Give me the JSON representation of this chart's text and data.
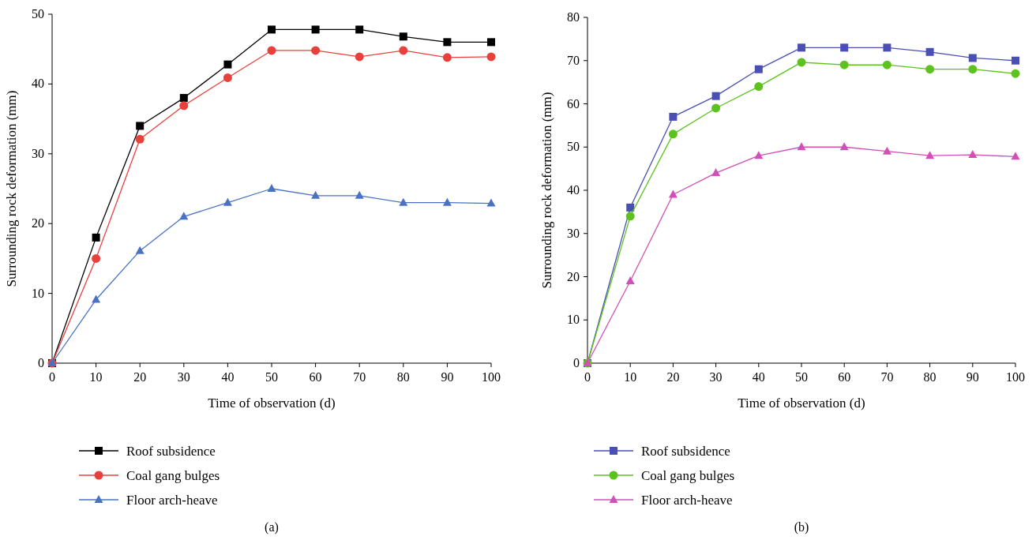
{
  "chart_data": [
    {
      "type": "line",
      "xlabel": "Time of observation (d)",
      "ylabel": "Surrounding rock deformation (mm)",
      "x": [
        0,
        10,
        20,
        30,
        40,
        50,
        60,
        70,
        80,
        90,
        100
      ],
      "xlim": [
        0,
        100
      ],
      "xticks": [
        0,
        10,
        20,
        30,
        40,
        50,
        60,
        70,
        80,
        90,
        100
      ],
      "ylim": [
        0,
        50
      ],
      "yticks": [
        0,
        10,
        20,
        30,
        40,
        50
      ],
      "grid": false,
      "legend": "bottom",
      "annotations": [
        "(a)"
      ],
      "series": [
        {
          "name": "Roof subsidence",
          "color": "#000000",
          "marker": "square",
          "values": [
            0,
            18,
            34,
            38,
            42.8,
            47.8,
            47.8,
            47.8,
            46.8,
            46,
            46
          ]
        },
        {
          "name": "Coal gang bulges",
          "color": "#e8413c",
          "marker": "circle",
          "values": [
            0,
            15,
            32.1,
            36.9,
            40.9,
            44.8,
            44.8,
            43.9,
            44.8,
            43.8,
            43.9
          ]
        },
        {
          "name": "Floor arch-heave",
          "color": "#4a72c4",
          "marker": "triangle",
          "values": [
            0,
            9.1,
            16.1,
            21,
            23,
            25,
            24,
            24,
            23,
            23,
            22.9
          ]
        }
      ]
    },
    {
      "type": "line",
      "xlabel": "Time of observation (d)",
      "ylabel": "Surrounding rock deformation (mm)",
      "x": [
        0,
        10,
        20,
        30,
        40,
        50,
        60,
        70,
        80,
        90,
        100
      ],
      "xlim": [
        0,
        100
      ],
      "xticks": [
        0,
        10,
        20,
        30,
        40,
        50,
        60,
        70,
        80,
        90,
        100
      ],
      "ylim": [
        0,
        80
      ],
      "yticks": [
        0,
        10,
        20,
        30,
        40,
        50,
        60,
        70,
        80
      ],
      "grid": false,
      "legend": "bottom",
      "annotations": [
        "(b)"
      ],
      "series": [
        {
          "name": "Roof subsidence",
          "color": "#4a4fb4",
          "marker": "square",
          "values": [
            0,
            36,
            57,
            61.8,
            68,
            73,
            73,
            73,
            72,
            70.6,
            70
          ]
        },
        {
          "name": "Coal gang bulges",
          "color": "#5dc21e",
          "marker": "circle",
          "values": [
            0,
            34,
            53,
            59,
            64,
            69.6,
            69,
            69,
            68,
            68,
            67
          ]
        },
        {
          "name": "Floor arch-heave",
          "color": "#d050b8",
          "marker": "triangle",
          "values": [
            0,
            19,
            39,
            44,
            48,
            50,
            50,
            49,
            48,
            48.2,
            47.8
          ]
        }
      ]
    }
  ]
}
